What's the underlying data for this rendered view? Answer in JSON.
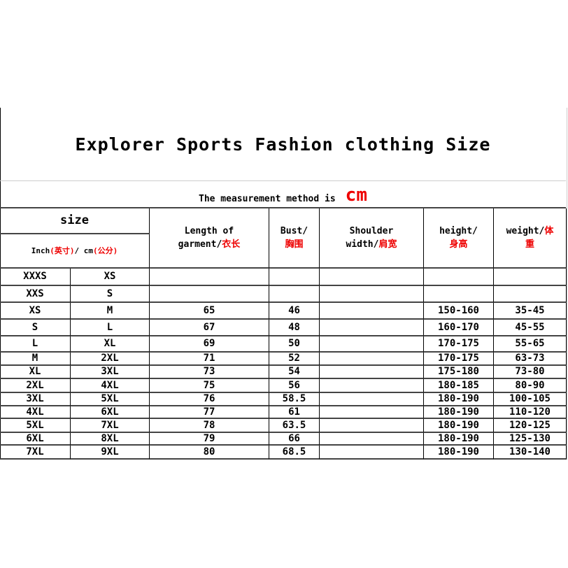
{
  "title": "Explorer Sports Fashion clothing Size",
  "subtitle": {
    "text": "The measurement method is",
    "unit": "cm"
  },
  "headers": {
    "size": "size",
    "size_sub": {
      "inch": "Inch",
      "inch_cn": "(英寸)",
      "sep": " / cm",
      "cm_cn": "(公分)"
    },
    "length": {
      "en1": "Length of",
      "en2": "garment/",
      "cn": "衣长"
    },
    "bust": {
      "en": "Bust/",
      "cn": "胸围"
    },
    "shoulder": {
      "en1": "Shoulder",
      "en2": "width/",
      "cn": "肩宽"
    },
    "height": {
      "en": "height/",
      "cn": "身高"
    },
    "weight": {
      "en": "weight/",
      "cn1": "体",
      "cn2": "重"
    }
  },
  "accent_color": "#e00000",
  "rows": [
    [
      "XXXS",
      "XS",
      "",
      "",
      "",
      "",
      ""
    ],
    [
      "XXS",
      "S",
      "",
      "",
      "",
      "",
      ""
    ],
    [
      "XS",
      "M",
      "65",
      "46",
      "",
      "150-160",
      "35-45"
    ],
    [
      "S",
      "L",
      "67",
      "48",
      "",
      "160-170",
      "45-55"
    ],
    [
      "L",
      "XL",
      "69",
      "50",
      "",
      "170-175",
      "55-65"
    ],
    [
      "M",
      "2XL",
      "71",
      "52",
      "",
      "170-175",
      "63-73"
    ],
    [
      "XL",
      "3XL",
      "73",
      "54",
      "",
      "175-180",
      "73-80"
    ],
    [
      "2XL",
      "4XL",
      "75",
      "56",
      "",
      "180-185",
      "80-90"
    ],
    [
      "3XL",
      "5XL",
      "76",
      "58.5",
      "",
      "180-190",
      "100-105"
    ],
    [
      "4XL",
      "6XL",
      "77",
      "61",
      "",
      "180-190",
      "110-120"
    ],
    [
      "5XL",
      "7XL",
      "78",
      "63.5",
      "",
      "180-190",
      "120-125"
    ],
    [
      "6XL",
      "8XL",
      "79",
      "66",
      "",
      "180-190",
      "125-130"
    ],
    [
      "7XL",
      "9XL",
      "80",
      "68.5",
      "",
      "180-190",
      "130-140"
    ]
  ]
}
